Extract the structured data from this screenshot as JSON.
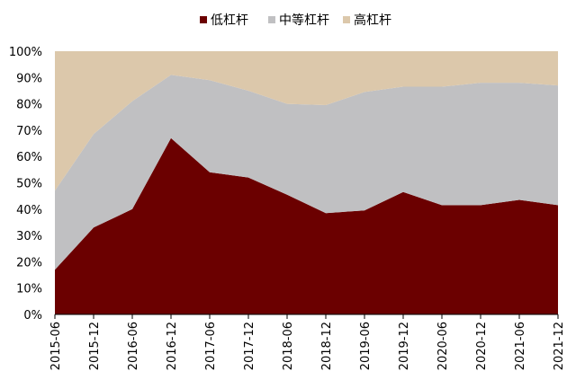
{
  "chart_data": {
    "type": "area",
    "stacked": true,
    "percent": true,
    "categories": [
      "2015-06",
      "2015-12",
      "2016-06",
      "2016-12",
      "2017-06",
      "2017-12",
      "2018-06",
      "2018-12",
      "2019-06",
      "2019-12",
      "2020-06",
      "2020-12",
      "2021-06",
      "2021-12"
    ],
    "series": [
      {
        "name": "低杠杆",
        "color": "#6b0000",
        "values": [
          17,
          33,
          40,
          67,
          54,
          52,
          45.5,
          38.5,
          39.5,
          46.5,
          41.5,
          41.5,
          43.5,
          41.5
        ]
      },
      {
        "name": "中等杠杆",
        "color": "#c0c0c2",
        "values": [
          30,
          35.5,
          41,
          24,
          35,
          33,
          34.5,
          41,
          45,
          40,
          45,
          46.5,
          44.5,
          45.5
        ]
      },
      {
        "name": "高杠杆",
        "color": "#dcc8ab",
        "values": [
          53,
          31.5,
          19,
          9,
          11,
          15,
          20,
          20.5,
          15.5,
          13.5,
          13.5,
          12,
          12,
          13
        ]
      }
    ],
    "y_ticks": [
      "0%",
      "10%",
      "20%",
      "30%",
      "40%",
      "50%",
      "60%",
      "70%",
      "80%",
      "90%",
      "100%"
    ],
    "ylim": [
      0,
      100
    ],
    "title": "",
    "xlabel": "",
    "ylabel": "",
    "legend_position": "top-center",
    "grid": false
  }
}
